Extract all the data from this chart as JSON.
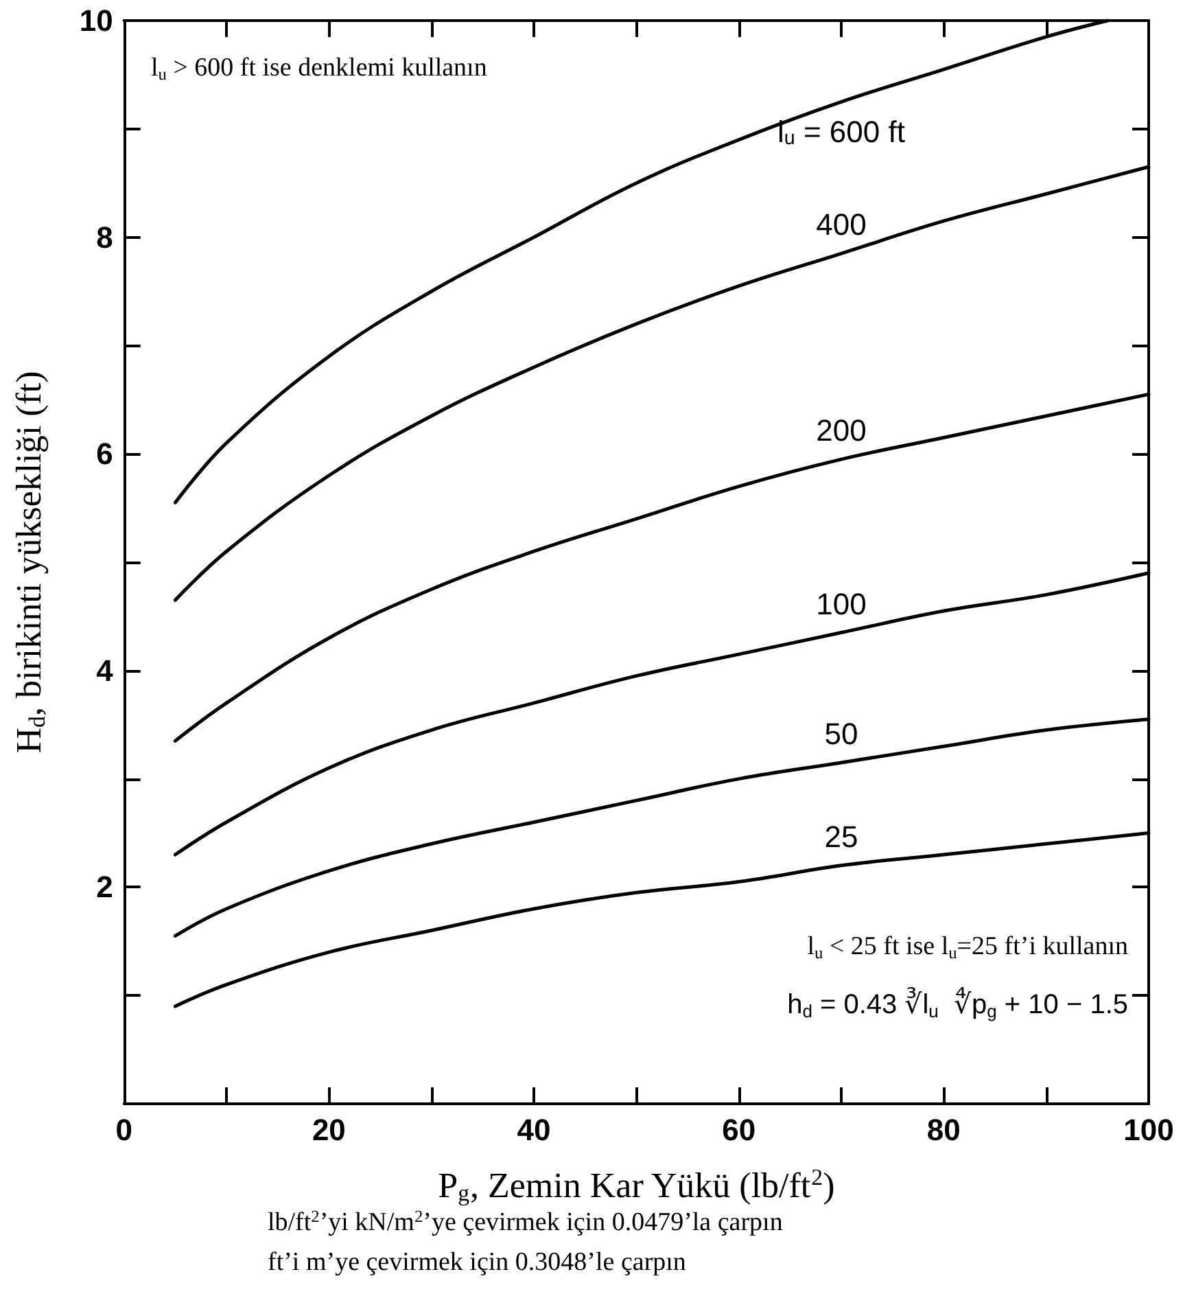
{
  "chart_data": {
    "type": "line",
    "xlabel": "P$_{g}$, Zemin Kar Yükü (lb/ft$^{2}$)",
    "ylabel": "H$_{d}$, birikinti yüksekliği (ft)",
    "x": [
      5,
      10,
      20,
      30,
      40,
      50,
      60,
      70,
      80,
      90,
      100
    ],
    "series": [
      {
        "name": "l$_{u}$ = 600 ft",
        "color": "#000000",
        "x": [
          5,
          10,
          20,
          30,
          40,
          50,
          60,
          70,
          80,
          90,
          96
        ],
        "values": [
          5.55,
          6.1,
          6.9,
          7.5,
          8.0,
          8.5,
          8.9,
          9.25,
          9.55,
          9.85,
          10.0
        ]
      },
      {
        "name": "400",
        "color": "#000000",
        "values": [
          4.65,
          5.1,
          5.8,
          6.35,
          6.8,
          7.2,
          7.55,
          7.85,
          8.15,
          8.4,
          8.65
        ]
      },
      {
        "name": "200",
        "color": "#000000",
        "values": [
          3.35,
          3.7,
          4.3,
          4.75,
          5.1,
          5.4,
          5.7,
          5.95,
          6.15,
          6.35,
          6.55
        ]
      },
      {
        "name": "100",
        "color": "#000000",
        "values": [
          2.3,
          2.6,
          3.1,
          3.45,
          3.7,
          3.95,
          4.15,
          4.35,
          4.55,
          4.7,
          4.9
        ]
      },
      {
        "name": "50",
        "color": "#000000",
        "values": [
          1.55,
          1.8,
          2.15,
          2.4,
          2.6,
          2.8,
          3.0,
          3.15,
          3.3,
          3.45,
          3.55
        ]
      },
      {
        "name": "25",
        "color": "#000000",
        "values": [
          0.9,
          1.1,
          1.4,
          1.6,
          1.8,
          1.95,
          2.05,
          2.2,
          2.3,
          2.4,
          2.5
        ]
      }
    ],
    "xlim": [
      0,
      100
    ],
    "xticks": [
      0,
      {
        "value": 10,
        "label": null
      },
      20,
      {
        "value": 30,
        "label": null
      },
      40,
      {
        "value": 50,
        "label": null
      },
      60,
      {
        "value": 70,
        "label": null
      },
      80,
      {
        "value": 90,
        "label": null
      },
      100
    ],
    "ylim": [
      0,
      10
    ],
    "yticks": [
      {
        "value": 0,
        "label": null
      },
      {
        "value": 1,
        "label": null
      },
      2,
      {
        "value": 3,
        "label": null
      },
      4,
      {
        "value": 5,
        "label": null
      },
      6,
      {
        "value": 7,
        "label": null
      },
      8,
      {
        "value": 9,
        "label": null
      },
      10
    ],
    "grid": false,
    "marker": "none",
    "line_style": "solid",
    "annotations": [
      "l$_{u}$ > 600 ft ise denklemi kullanın",
      "l$_{u}$ < 25 ft ise l$_{u}$=25 ft’i kullanın",
      "h$_{d}$ = 0.43 ∛l$_{u}$  ∜p$_{g}$ + 10 − 1.5",
      "lb/ft$^{2}$’yi kN/m$^{2}$’ye çevirmek için 0.0479’la çarpın",
      "ft’i m’ye çevirmek için 0.3048’le çarpın"
    ]
  }
}
